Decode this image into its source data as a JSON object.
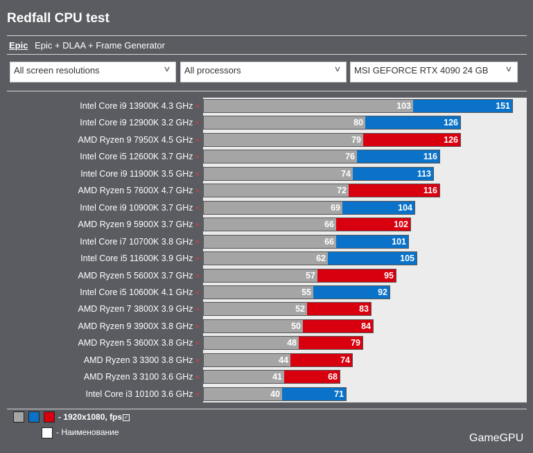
{
  "title": "Redfall CPU test",
  "tabs": [
    {
      "label": "Epic",
      "active": true
    },
    {
      "label": "Epic + DLAA + Frame Generator",
      "active": false
    }
  ],
  "filters": {
    "resolution": "All screen resolutions",
    "processors": "All processors",
    "gpu": "MSI GEFORCE RTX 4090 24 GB"
  },
  "colors": {
    "low": "#a5a5a5",
    "intel": "#0a73c9",
    "amd": "#d8000f",
    "label_white": "#ffffff"
  },
  "chart_data": {
    "type": "bar",
    "orientation": "horizontal",
    "stacked_overlay": true,
    "xlim": [
      0,
      160
    ],
    "grid": false,
    "categories": [
      "Intel Core i9 13900K 4.3 GHz",
      "Intel Core i9 12900K 3.2 GHz",
      "AMD Ryzen 9 7950X 4.5 GHz",
      "Intel Core i5 12600K 3.7 GHz",
      "Intel Core i9 11900K 3.5 GHz",
      "AMD Ryzen 5 7600X 4.7 GHz",
      "Intel Core i9 10900K 3.7 GHz",
      "AMD Ryzen 9 5900X 3.7 GHz",
      "Intel Core i7 10700K 3.8 GHz",
      "Intel Core i5 11600K 3.9 GHz",
      "AMD Ryzen 5 5600X 3.7 GHz",
      "Intel Core i5 10600K 4.1 GHz",
      "AMD Ryzen 7 3800X 3.9 GHz",
      "AMD Ryzen 9 3900X 3.8 GHz",
      "AMD Ryzen 5 3600X 3.8 GHz",
      "AMD Ryzen 3 3300 3.8 GHz",
      "AMD Ryzen 3 3100 3.6 GHz",
      "Intel Core i3 10100 3.6 GHz"
    ],
    "vendor": [
      "intel",
      "intel",
      "amd",
      "intel",
      "intel",
      "amd",
      "intel",
      "amd",
      "intel",
      "intel",
      "amd",
      "intel",
      "amd",
      "amd",
      "amd",
      "amd",
      "amd",
      "intel"
    ],
    "series": [
      {
        "values": [
          103,
          80,
          79,
          76,
          74,
          72,
          69,
          66,
          66,
          62,
          57,
          55,
          52,
          50,
          48,
          44,
          41,
          40
        ]
      },
      {
        "values": [
          151,
          126,
          126,
          116,
          113,
          116,
          104,
          102,
          101,
          105,
          95,
          92,
          83,
          84,
          79,
          74,
          68,
          71
        ]
      }
    ],
    "legend": [
      {
        "label": "- 1920x1080, fps",
        "swatches": [
          "low",
          "intel",
          "amd"
        ]
      },
      {
        "label": "- Наименование",
        "swatches": [
          "label_white"
        ]
      }
    ],
    "remove_mark": "×"
  },
  "brand": "GameGPU"
}
